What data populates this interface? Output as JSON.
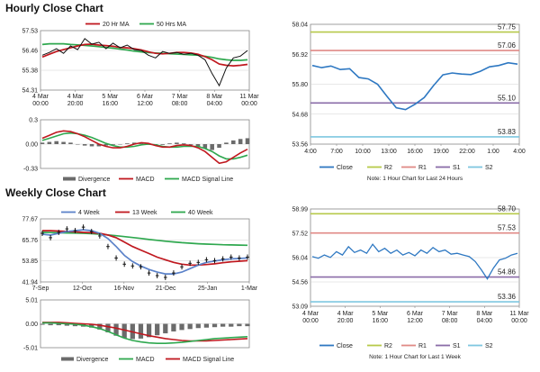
{
  "sections": {
    "hourly_title": "Hourly Close Chart",
    "weekly_title": "Weekly Close Chart"
  },
  "colors": {
    "price": "#111111",
    "ma_short": "#c0181f",
    "ma_long": "#2fa84f",
    "close": "#2e78c2",
    "r2": "#b7c94a",
    "r1": "#e08a86",
    "s1": "#8a6ca8",
    "s2": "#7ec7e0",
    "grid": "#d0d0d0",
    "divergence": "#6b6b6b",
    "ma_4wk": "#5b82c9"
  },
  "chart_data": [
    {
      "id": "hourly_price",
      "type": "line",
      "ylim": [
        54.31,
        57.53
      ],
      "y_ticks": [
        "57.53",
        "56.46",
        "55.38",
        "54.31"
      ],
      "x_ticks": [
        "4 Mar\n00:00",
        "4 Mar\n20:00",
        "5 Mar\n16:00",
        "6 Mar\n12:00",
        "7 Mar\n08:00",
        "8 Mar\n04:00",
        "11 Mar\n00:00"
      ],
      "legend": [
        "20 Hr MA",
        "50 Hrs MA"
      ],
      "series": [
        {
          "name": "Close",
          "values": [
            56.2,
            56.35,
            56.55,
            56.3,
            56.7,
            56.5,
            57.1,
            56.8,
            56.9,
            56.55,
            56.85,
            56.6,
            56.75,
            56.5,
            56.45,
            56.2,
            56.05,
            56.4,
            56.3,
            56.35,
            56.25,
            56.3,
            56.2,
            55.95,
            55.2,
            54.55,
            55.5,
            56.05,
            56.15,
            56.45
          ]
        },
        {
          "name": "20 Hr MA",
          "values": [
            56.1,
            56.25,
            56.4,
            56.5,
            56.6,
            56.7,
            56.78,
            56.8,
            56.75,
            56.72,
            56.68,
            56.62,
            56.6,
            56.55,
            56.48,
            56.38,
            56.3,
            56.27,
            56.3,
            56.35,
            56.35,
            56.32,
            56.25,
            56.12,
            55.95,
            55.72,
            55.65,
            55.62,
            55.65,
            55.7
          ]
        },
        {
          "name": "50 Hrs MA",
          "values": [
            56.78,
            56.82,
            56.82,
            56.82,
            56.78,
            56.76,
            56.73,
            56.7,
            56.66,
            56.62,
            56.58,
            56.53,
            56.48,
            56.42,
            56.38,
            56.34,
            56.32,
            56.3,
            56.28,
            56.26,
            56.24,
            56.22,
            56.2,
            56.14,
            56.08,
            56.0,
            55.95,
            55.92,
            55.92,
            55.95
          ]
        }
      ]
    },
    {
      "id": "hourly_macd",
      "type": "bar",
      "ylim": [
        -0.33,
        0.33
      ],
      "y_ticks": [
        "0.3",
        "0.00",
        "-0.33"
      ],
      "legend": [
        "Divergence",
        "MACD",
        "MACD Signal Line"
      ],
      "series": [
        {
          "name": "Divergence",
          "values": [
            0.02,
            0.03,
            0.04,
            0.03,
            0.02,
            0.0,
            -0.02,
            -0.03,
            -0.03,
            -0.02,
            -0.01,
            0.0,
            0.01,
            0.02,
            0.01,
            -0.01,
            -0.02,
            -0.01,
            0.01,
            0.02,
            0.01,
            -0.01,
            -0.03,
            -0.06,
            -0.08,
            -0.05,
            0.02,
            0.05,
            0.07,
            0.08
          ]
        },
        {
          "name": "MACD",
          "values": [
            0.08,
            0.12,
            0.16,
            0.18,
            0.17,
            0.14,
            0.1,
            0.05,
            0.0,
            -0.03,
            -0.05,
            -0.05,
            -0.03,
            0.0,
            0.02,
            0.01,
            -0.02,
            -0.04,
            -0.04,
            -0.02,
            -0.01,
            -0.02,
            -0.05,
            -0.1,
            -0.18,
            -0.26,
            -0.24,
            -0.18,
            -0.12,
            -0.07
          ]
        },
        {
          "name": "MACD Signal Line",
          "values": [
            0.05,
            0.08,
            0.11,
            0.14,
            0.15,
            0.14,
            0.12,
            0.09,
            0.05,
            0.01,
            -0.02,
            -0.04,
            -0.04,
            -0.03,
            -0.01,
            0.0,
            -0.01,
            -0.03,
            -0.04,
            -0.04,
            -0.03,
            -0.03,
            -0.03,
            -0.06,
            -0.1,
            -0.16,
            -0.2,
            -0.2,
            -0.18,
            -0.15
          ]
        }
      ]
    },
    {
      "id": "hourly_levels",
      "type": "line",
      "ylim": [
        53.56,
        58.04
      ],
      "y_ticks": [
        "58.04",
        "56.92",
        "55.80",
        "54.68",
        "53.56"
      ],
      "x_ticks": [
        "4:00",
        "7:00",
        "10:00",
        "13:00",
        "16:00",
        "19:00",
        "22:00",
        "1:00",
        "4:00"
      ],
      "levels": [
        {
          "name": "R2",
          "value": 57.75,
          "label": "57.75"
        },
        {
          "name": "R1",
          "value": 57.06,
          "label": "57.06"
        },
        {
          "name": "S1",
          "value": 55.1,
          "label": "55.10"
        },
        {
          "name": "S2",
          "value": 53.83,
          "label": "53.83"
        }
      ],
      "legend": [
        "Close",
        "R2",
        "R1",
        "S1",
        "S2"
      ],
      "note": "Note: 1 Hour Chart for Last 24 Hours",
      "series": [
        {
          "name": "Close",
          "values": [
            56.5,
            56.42,
            56.48,
            56.35,
            56.38,
            56.05,
            56.0,
            55.8,
            55.35,
            54.92,
            54.85,
            55.05,
            55.3,
            55.75,
            56.15,
            56.22,
            56.18,
            56.16,
            56.28,
            56.45,
            56.5,
            56.6,
            56.55
          ]
        }
      ]
    },
    {
      "id": "weekly_price",
      "type": "line",
      "ylim": [
        41.94,
        77.67
      ],
      "y_ticks": [
        "77.67",
        "65.76",
        "53.85",
        "41.94"
      ],
      "x_ticks": [
        "7-Sep",
        "12-Oct",
        "16-Nov",
        "21-Dec",
        "25-Jan",
        "1-Mar"
      ],
      "legend": [
        "4 Week",
        "13 Week",
        "40 Week"
      ],
      "series": [
        {
          "name": "Close",
          "values": [
            69.5,
            67.0,
            70.0,
            72.0,
            71.0,
            73.0,
            70.5,
            68.0,
            62.0,
            55.5,
            52.0,
            51.0,
            50.5,
            47.0,
            45.5,
            44.5,
            47.0,
            50.5,
            52.5,
            53.0,
            54.5,
            54.0,
            55.0,
            56.0,
            55.5,
            56.0
          ]
        },
        {
          "name": "4 Week",
          "values": [
            69.0,
            68.5,
            69.5,
            70.5,
            71.0,
            71.5,
            71.0,
            69.5,
            66.5,
            62.0,
            57.0,
            53.5,
            51.0,
            49.0,
            47.5,
            46.5,
            46.5,
            47.5,
            49.5,
            51.5,
            53.0,
            53.8,
            54.5,
            55.0,
            55.2,
            55.5
          ]
        },
        {
          "name": "13 Week",
          "values": [
            71.0,
            71.0,
            70.8,
            70.5,
            70.3,
            70.0,
            69.8,
            69.5,
            68.5,
            67.0,
            64.5,
            62.0,
            60.0,
            58.0,
            56.0,
            54.5,
            53.0,
            52.0,
            51.5,
            51.5,
            51.8,
            52.2,
            52.8,
            53.3,
            53.7,
            54.0
          ]
        },
        {
          "name": "40 Week",
          "values": [
            70.0,
            69.9,
            69.8,
            69.7,
            69.6,
            69.5,
            69.3,
            69.0,
            68.6,
            68.1,
            67.6,
            67.1,
            66.6,
            66.0,
            65.5,
            65.0,
            64.6,
            64.2,
            63.9,
            63.6,
            63.4,
            63.2,
            63.0,
            62.9,
            62.8,
            62.7
          ]
        }
      ]
    },
    {
      "id": "weekly_macd",
      "type": "bar",
      "ylim": [
        -5.01,
        5.01
      ],
      "y_ticks": [
        "5.01",
        "0.00",
        "-5.01"
      ],
      "legend": [
        "Divergence",
        "MACD",
        "MACD Signal Line"
      ],
      "series": [
        {
          "name": "Divergence",
          "values": [
            -0.2,
            -0.3,
            -0.3,
            -0.4,
            -0.5,
            -0.6,
            -0.8,
            -1.2,
            -1.8,
            -2.5,
            -3.0,
            -3.2,
            -3.1,
            -2.8,
            -2.4,
            -2.0,
            -1.6,
            -1.3,
            -1.1,
            -0.9,
            -0.8,
            -0.7,
            -0.6,
            -0.6,
            -0.5,
            -0.5
          ]
        },
        {
          "name": "MACD",
          "values": [
            0.2,
            0.2,
            0.1,
            0.0,
            -0.1,
            -0.3,
            -0.6,
            -1.0,
            -1.6,
            -2.3,
            -3.0,
            -3.5,
            -3.8,
            -4.0,
            -4.1,
            -4.1,
            -4.0,
            -3.9,
            -3.7,
            -3.5,
            -3.3,
            -3.1,
            -3.0,
            -2.9,
            -2.8,
            -2.7
          ]
        },
        {
          "name": "MACD Signal Line",
          "values": [
            0.3,
            0.3,
            0.3,
            0.2,
            0.1,
            0.0,
            -0.1,
            -0.3,
            -0.6,
            -0.9,
            -1.3,
            -1.7,
            -2.1,
            -2.5,
            -2.8,
            -3.1,
            -3.3,
            -3.5,
            -3.6,
            -3.6,
            -3.6,
            -3.5,
            -3.4,
            -3.3,
            -3.2,
            -3.1
          ]
        }
      ]
    },
    {
      "id": "weekly_levels",
      "type": "line",
      "ylim": [
        53.09,
        58.99
      ],
      "y_ticks": [
        "58.99",
        "57.52",
        "56.04",
        "54.56",
        "53.09"
      ],
      "x_ticks": [
        "4 Mar\n00:00",
        "4 Mar\n20:00",
        "5 Mar\n16:00",
        "6 Mar\n12:00",
        "7 Mar\n08:00",
        "8 Mar\n04:00",
        "11 Mar\n00:00"
      ],
      "levels": [
        {
          "name": "R2",
          "value": 58.7,
          "label": "58.70"
        },
        {
          "name": "R1",
          "value": 57.53,
          "label": "57.53"
        },
        {
          "name": "S1",
          "value": 54.86,
          "label": "54.86"
        },
        {
          "name": "S2",
          "value": 53.36,
          "label": "53.36"
        }
      ],
      "legend": [
        "Close",
        "R2",
        "R1",
        "S1",
        "S2"
      ],
      "note": "Note: 1 Hour Chart for Last 1 Week",
      "series": [
        {
          "name": "Close",
          "values": [
            56.1,
            56.0,
            56.2,
            56.05,
            56.4,
            56.2,
            56.7,
            56.35,
            56.5,
            56.3,
            56.85,
            56.4,
            56.6,
            56.3,
            56.5,
            56.2,
            56.35,
            56.15,
            56.5,
            56.3,
            56.65,
            56.4,
            56.5,
            56.25,
            56.3,
            56.2,
            56.1,
            55.8,
            55.3,
            54.75,
            55.4,
            55.9,
            56.0,
            56.2,
            56.3
          ]
        }
      ]
    }
  ]
}
